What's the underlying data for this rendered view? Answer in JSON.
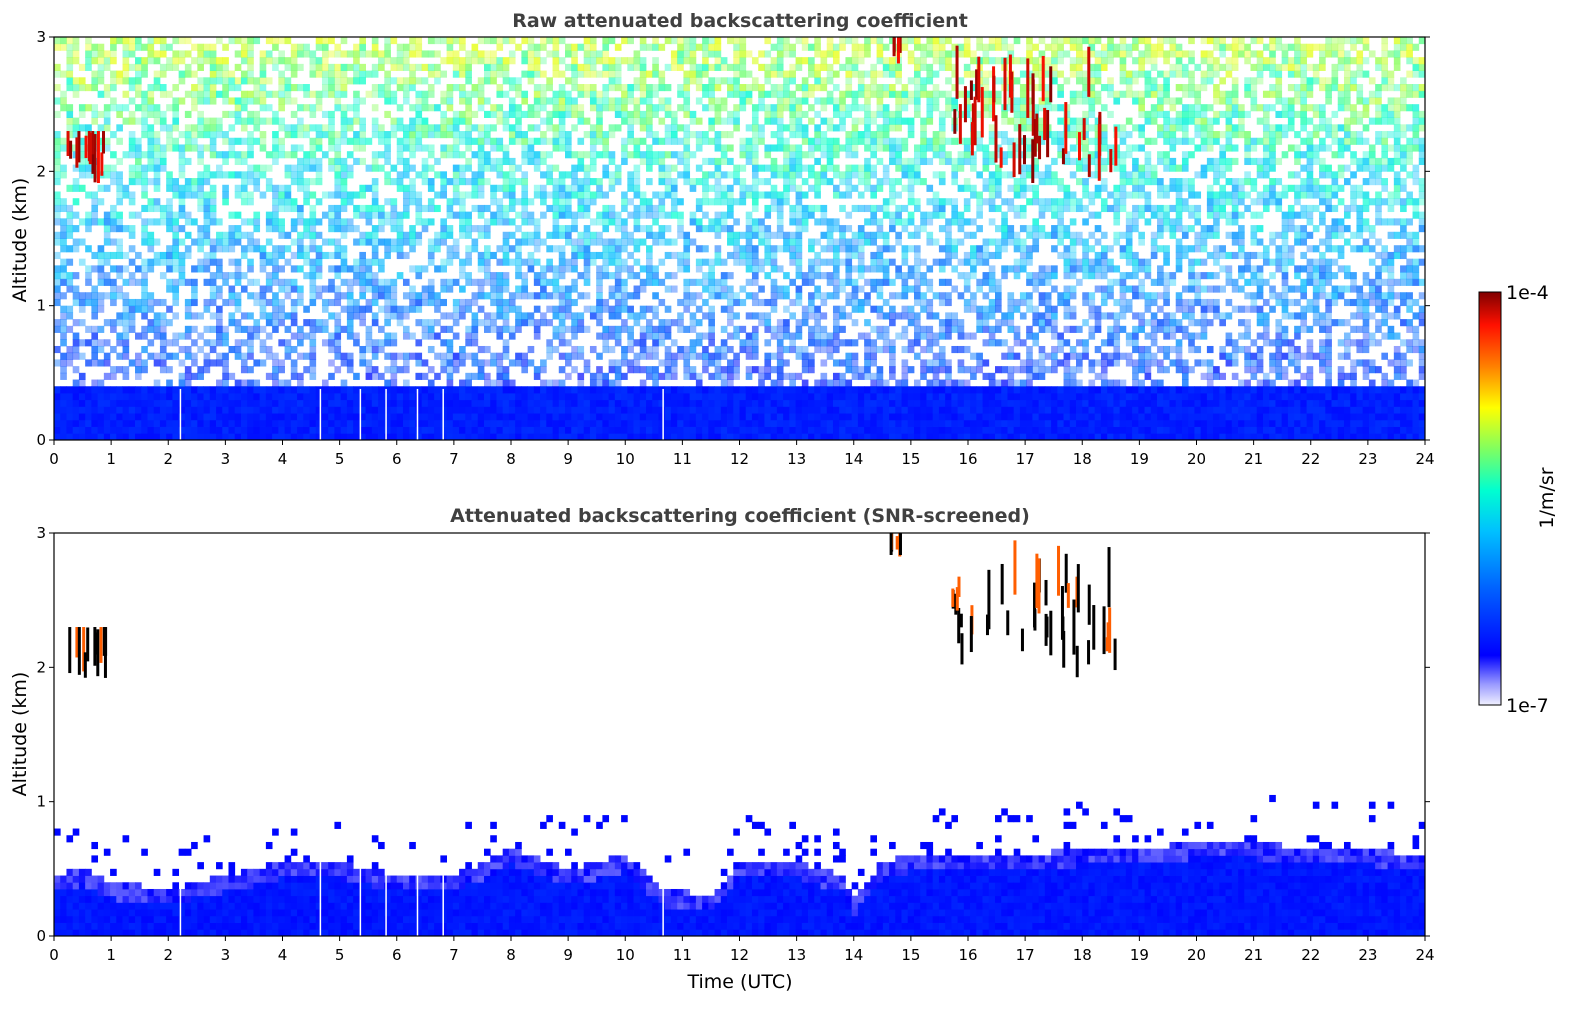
{
  "chart_data": [
    {
      "type": "heatmap",
      "title": "Raw attenuated backscattering coefficient",
      "xlabel": "",
      "ylabel": "Altitude (km)",
      "xlim": [
        0,
        24
      ],
      "ylim": [
        0,
        3
      ],
      "x_ticks": [
        "0",
        "1",
        "2",
        "3",
        "4",
        "5",
        "6",
        "7",
        "8",
        "9",
        "10",
        "11",
        "12",
        "13",
        "14",
        "15",
        "16",
        "17",
        "18",
        "19",
        "20",
        "21",
        "22",
        "23",
        "24"
      ],
      "y_ticks": [
        "0",
        "1",
        "2",
        "3"
      ],
      "features": [
        {
          "kind": "aerosol_layer",
          "x_range": [
            0,
            24
          ],
          "top_km": 0.4,
          "level": "high"
        },
        {
          "kind": "noise_gradient",
          "from_km": 0.4,
          "to_km": 3,
          "level": "increasing_noise"
        },
        {
          "kind": "cloud",
          "x_range": [
            14.6,
            14.8
          ],
          "alt_range": [
            2.8,
            3.0
          ]
        },
        {
          "kind": "cloud",
          "x_range": [
            15.7,
            18.6
          ],
          "alt_range": [
            1.9,
            3.0
          ]
        },
        {
          "kind": "cloud",
          "x_range": [
            0.2,
            0.9
          ],
          "alt_range": [
            1.9,
            2.3
          ]
        }
      ],
      "gap_columns": [
        2.2,
        4.65,
        5.35,
        5.8,
        6.35,
        6.8,
        10.65
      ]
    },
    {
      "type": "heatmap",
      "title": "Attenuated backscattering coefficient (SNR-screened)",
      "xlabel": "Time (UTC)",
      "ylabel": "Altitude (km)",
      "xlim": [
        0,
        24
      ],
      "ylim": [
        0,
        3
      ],
      "x_ticks": [
        "0",
        "1",
        "2",
        "3",
        "4",
        "5",
        "6",
        "7",
        "8",
        "9",
        "10",
        "11",
        "12",
        "13",
        "14",
        "15",
        "16",
        "17",
        "18",
        "19",
        "20",
        "21",
        "22",
        "23",
        "24"
      ],
      "y_ticks": [
        "0",
        "1",
        "2",
        "3"
      ],
      "boundary_layer_top_km": [
        [
          0,
          0.45
        ],
        [
          0.5,
          0.5
        ],
        [
          1,
          0.4
        ],
        [
          2,
          0.35
        ],
        [
          3,
          0.45
        ],
        [
          4,
          0.55
        ],
        [
          5,
          0.55
        ],
        [
          6,
          0.45
        ],
        [
          7,
          0.45
        ],
        [
          8,
          0.65
        ],
        [
          9,
          0.5
        ],
        [
          10,
          0.6
        ],
        [
          10.65,
          0.35
        ],
        [
          11.5,
          0.3
        ],
        [
          12,
          0.55
        ],
        [
          13,
          0.55
        ],
        [
          13.8,
          0.45
        ],
        [
          14,
          0.28
        ],
        [
          14.5,
          0.55
        ],
        [
          15,
          0.6
        ],
        [
          16,
          0.6
        ],
        [
          17,
          0.6
        ],
        [
          18,
          0.65
        ],
        [
          19,
          0.65
        ],
        [
          20,
          0.7
        ],
        [
          21,
          0.7
        ],
        [
          22,
          0.65
        ],
        [
          23,
          0.65
        ],
        [
          24,
          0.6
        ]
      ],
      "clouds": [
        {
          "x_range": [
            14.6,
            14.8
          ],
          "alt_range": [
            2.8,
            3.0
          ]
        },
        {
          "x_range": [
            15.7,
            18.6
          ],
          "alt_range": [
            1.9,
            3.0
          ]
        },
        {
          "x_range": [
            0.2,
            0.9
          ],
          "alt_range": [
            1.9,
            2.3
          ]
        }
      ],
      "gap_columns": [
        2.2,
        4.65,
        5.35,
        5.8,
        6.35,
        6.8,
        10.65
      ]
    }
  ],
  "colorbar": {
    "label": "1/m/sr",
    "max_label": "1e-4",
    "min_label": "1e-7",
    "colormap": [
      "#ffffff",
      "#e6e6ff",
      "#0000ff",
      "#0080ff",
      "#00ffff",
      "#80ff80",
      "#ffff00",
      "#ff8000",
      "#ff0000",
      "#800000"
    ]
  }
}
